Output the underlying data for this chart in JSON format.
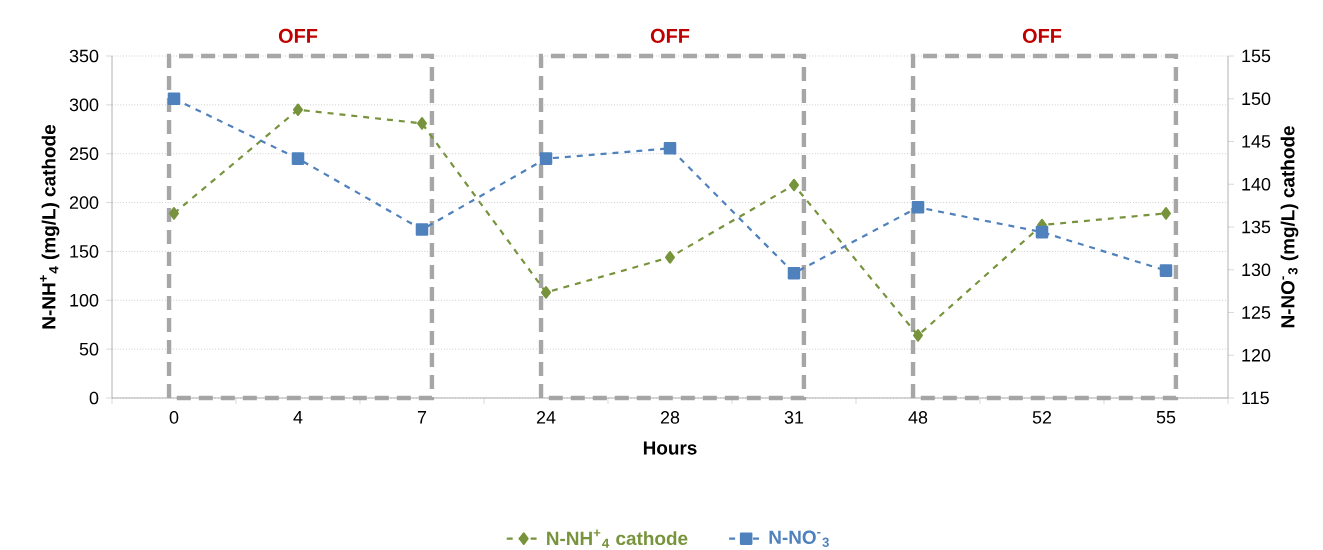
{
  "chart_data": {
    "type": "line",
    "xlabel": "Hours",
    "ylabel": "N-NH$^{+}$$_{4}$ (mg/L) cathode",
    "y2label": "N-NO$^{-}$$_{3}$ (mg/L) cathode",
    "categories": [
      "0",
      "4",
      "7",
      "24",
      "28",
      "31",
      "48",
      "52",
      "55"
    ],
    "series": [
      {
        "name": "N-NH$^{+}$$_{4}$ cathode",
        "color": "#77933c",
        "marker": "diamond",
        "line_style": "dashed",
        "values": [
          189,
          295,
          281,
          108,
          144,
          218,
          64,
          177,
          189
        ]
      },
      {
        "name": "N-NO$^{-}$$_{3}$",
        "color": "#4f81bd",
        "marker": "square",
        "line_style": "dashed",
        "axis": "y2",
        "values": [
          150,
          143,
          134.7,
          143,
          144.2,
          129.6,
          137.3,
          134.4,
          129.9
        ]
      }
    ],
    "ylim": [
      0,
      350
    ],
    "yticks": [
      0,
      50,
      100,
      150,
      200,
      250,
      300,
      350
    ],
    "y2lim": [
      115,
      155
    ],
    "y2ticks": [
      115,
      120,
      125,
      130,
      135,
      140,
      145,
      150,
      155
    ],
    "bands": [
      {
        "axis": "x",
        "from": "0",
        "to": "7",
        "label": "OFF",
        "color": "#a6a6a6"
      },
      {
        "axis": "x",
        "from": "24",
        "to": "31",
        "label": "OFF",
        "color": "#a6a6a6"
      },
      {
        "axis": "x",
        "from": "48",
        "to": "55",
        "label": "OFF",
        "color": "#a6a6a6"
      }
    ],
    "grid": "y",
    "legend": "bottom"
  }
}
